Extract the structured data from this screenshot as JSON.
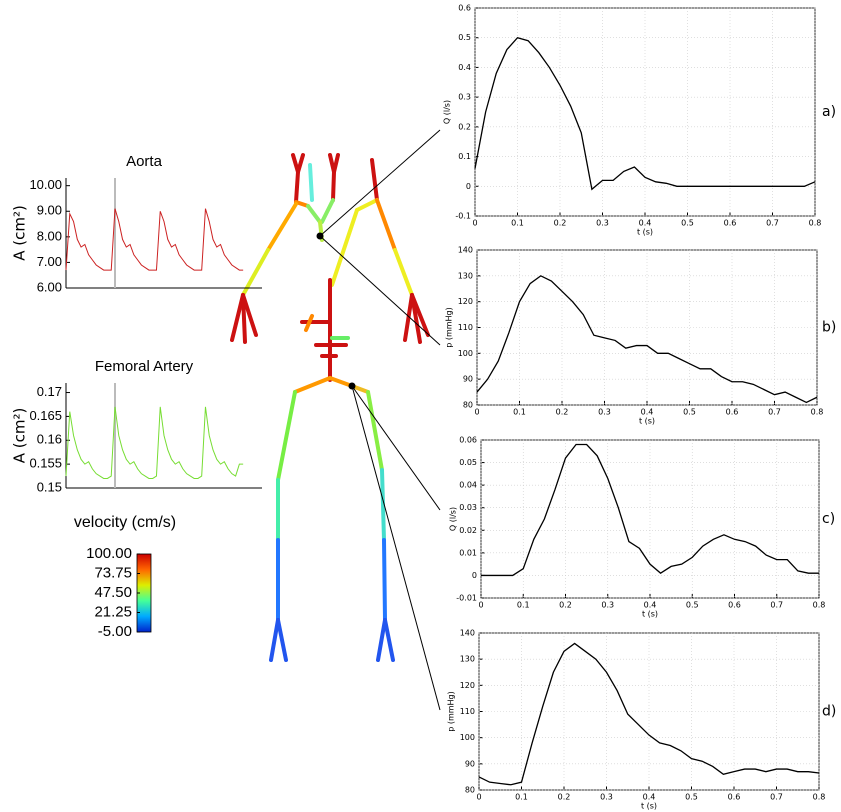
{
  "chart_data": [
    {
      "type": "line",
      "title": "Aorta",
      "y_label": "A (cm²)",
      "color": "#cc2222",
      "x": [
        0,
        1,
        2,
        3,
        4,
        5,
        6,
        7,
        8,
        9,
        10,
        11,
        12,
        13,
        14,
        15,
        16,
        17,
        18,
        19,
        20,
        21,
        22,
        23,
        24,
        25,
        26,
        27,
        28,
        29,
        30,
        31,
        32,
        33,
        34,
        35,
        36,
        37,
        38,
        39,
        40,
        41,
        42,
        43,
        44,
        45,
        46,
        47
      ],
      "values": [
        6.7,
        8.9,
        8.6,
        7.9,
        7.6,
        7.7,
        7.3,
        7.1,
        6.9,
        6.8,
        6.7,
        6.7,
        6.7,
        9.1,
        8.6,
        7.9,
        7.6,
        7.7,
        7.3,
        7.1,
        6.9,
        6.8,
        6.7,
        6.7,
        6.7,
        9.0,
        8.6,
        7.9,
        7.6,
        7.7,
        7.3,
        7.1,
        6.9,
        6.8,
        6.7,
        6.7,
        6.7,
        9.1,
        8.6,
        7.9,
        7.6,
        7.7,
        7.3,
        7.1,
        6.9,
        6.8,
        6.7,
        6.7
      ],
      "xlim": [
        0,
        52
      ],
      "ylim": [
        6,
        10.3
      ],
      "cursor_x": 13,
      "yticks": [
        {
          "value": 6,
          "label": "6.00"
        },
        {
          "value": 7,
          "label": "7.00"
        },
        {
          "value": 8,
          "label": "8.00"
        },
        {
          "value": 9,
          "label": "9.00"
        },
        {
          "value": 10,
          "label": "10.00"
        }
      ],
      "grid": false
    },
    {
      "type": "line",
      "title": "Femoral Artery",
      "y_label": "A (cm²)",
      "color": "#77dd33",
      "x": [
        0,
        1,
        2,
        3,
        4,
        5,
        6,
        7,
        8,
        9,
        10,
        11,
        12,
        13,
        14,
        15,
        16,
        17,
        18,
        19,
        20,
        21,
        22,
        23,
        24,
        25,
        26,
        27,
        28,
        29,
        30,
        31,
        32,
        33,
        34,
        35,
        36,
        37,
        38,
        39,
        40,
        41,
        42,
        43,
        44,
        45,
        46,
        47
      ],
      "values": [
        0.1525,
        0.166,
        0.161,
        0.158,
        0.156,
        0.155,
        0.1555,
        0.154,
        0.153,
        0.1525,
        0.152,
        0.152,
        0.1525,
        0.167,
        0.161,
        0.158,
        0.156,
        0.155,
        0.1555,
        0.154,
        0.153,
        0.1525,
        0.152,
        0.152,
        0.1525,
        0.167,
        0.161,
        0.158,
        0.156,
        0.155,
        0.1555,
        0.154,
        0.153,
        0.1525,
        0.152,
        0.152,
        0.1525,
        0.167,
        0.161,
        0.158,
        0.156,
        0.155,
        0.1555,
        0.154,
        0.153,
        0.1525,
        0.155,
        0.155
      ],
      "xlim": [
        0,
        52
      ],
      "ylim": [
        0.15,
        0.172
      ],
      "cursor_x": 13,
      "yticks": [
        0.15,
        0.155,
        0.16,
        0.165,
        0.17
      ],
      "grid": false
    },
    {
      "type": "line",
      "panel_label": "a)",
      "x_label": "t (s)",
      "y_label": "Q (l/s)",
      "color": "#000000",
      "x": [
        0,
        0.025,
        0.05,
        0.075,
        0.1,
        0.125,
        0.15,
        0.175,
        0.2,
        0.225,
        0.25,
        0.275,
        0.3,
        0.325,
        0.35,
        0.375,
        0.4,
        0.425,
        0.45,
        0.475,
        0.5,
        0.525,
        0.55,
        0.575,
        0.6,
        0.625,
        0.65,
        0.675,
        0.7,
        0.725,
        0.75,
        0.775,
        0.8
      ],
      "values": [
        0.06,
        0.25,
        0.38,
        0.46,
        0.5,
        0.49,
        0.45,
        0.4,
        0.34,
        0.27,
        0.18,
        -0.01,
        0.02,
        0.02,
        0.05,
        0.065,
        0.03,
        0.015,
        0.01,
        0,
        0,
        0,
        0,
        0,
        0,
        0,
        0,
        0,
        0,
        0,
        0,
        0,
        0.015
      ],
      "xlim": [
        0,
        0.8
      ],
      "ylim": [
        -0.1,
        0.6
      ],
      "xticks": [
        0,
        0.1,
        0.2,
        0.3,
        0.4,
        0.5,
        0.6,
        0.7,
        0.8
      ],
      "yticks": [
        -0.1,
        0,
        0.1,
        0.2,
        0.3,
        0.4,
        0.5,
        0.6
      ],
      "grid": true
    },
    {
      "type": "line",
      "panel_label": "b)",
      "x_label": "t (s)",
      "y_label": "p (mmHg)",
      "color": "#000000",
      "x": [
        0,
        0.025,
        0.05,
        0.075,
        0.1,
        0.125,
        0.15,
        0.175,
        0.2,
        0.225,
        0.25,
        0.275,
        0.3,
        0.325,
        0.35,
        0.375,
        0.4,
        0.425,
        0.45,
        0.475,
        0.5,
        0.525,
        0.55,
        0.575,
        0.6,
        0.625,
        0.65,
        0.675,
        0.7,
        0.725,
        0.75,
        0.775,
        0.8
      ],
      "values": [
        85,
        90,
        97,
        108,
        120,
        127,
        130,
        128,
        124,
        120,
        115,
        107,
        106,
        105,
        102,
        103,
        103,
        100,
        100,
        98,
        96,
        94,
        94,
        91,
        89,
        89,
        88,
        86,
        84,
        85,
        83,
        81,
        83
      ],
      "xlim": [
        0,
        0.8
      ],
      "ylim": [
        80,
        140
      ],
      "xticks": [
        0,
        0.1,
        0.2,
        0.3,
        0.4,
        0.5,
        0.6,
        0.7,
        0.8
      ],
      "yticks": [
        80,
        90,
        100,
        110,
        120,
        130,
        140
      ],
      "grid": true
    },
    {
      "type": "line",
      "panel_label": "c)",
      "x_label": "t (s)",
      "y_label": "Q (l/s)",
      "color": "#000000",
      "x": [
        0,
        0.025,
        0.05,
        0.075,
        0.1,
        0.125,
        0.15,
        0.175,
        0.2,
        0.225,
        0.25,
        0.275,
        0.3,
        0.325,
        0.35,
        0.375,
        0.4,
        0.425,
        0.45,
        0.475,
        0.5,
        0.525,
        0.55,
        0.575,
        0.6,
        0.625,
        0.65,
        0.675,
        0.7,
        0.725,
        0.75,
        0.775,
        0.8
      ],
      "values": [
        0,
        0,
        0,
        0,
        0.003,
        0.016,
        0.025,
        0.038,
        0.052,
        0.058,
        0.058,
        0.053,
        0.043,
        0.03,
        0.015,
        0.012,
        0.005,
        0.001,
        0.004,
        0.005,
        0.008,
        0.013,
        0.016,
        0.018,
        0.016,
        0.015,
        0.013,
        0.009,
        0.007,
        0.007,
        0.002,
        0.001,
        0.001
      ],
      "xlim": [
        0,
        0.8
      ],
      "ylim": [
        -0.01,
        0.06
      ],
      "xticks": [
        0,
        0.1,
        0.2,
        0.3,
        0.4,
        0.5,
        0.6,
        0.7,
        0.8
      ],
      "yticks": [
        -0.01,
        0,
        0.01,
        0.02,
        0.03,
        0.04,
        0.05,
        0.06
      ],
      "grid": true
    },
    {
      "type": "line",
      "panel_label": "d)",
      "x_label": "t (s)",
      "y_label": "p (mmHg)",
      "color": "#000000",
      "x": [
        0,
        0.025,
        0.05,
        0.075,
        0.1,
        0.125,
        0.15,
        0.175,
        0.2,
        0.225,
        0.25,
        0.275,
        0.3,
        0.325,
        0.35,
        0.375,
        0.4,
        0.425,
        0.45,
        0.475,
        0.5,
        0.525,
        0.55,
        0.575,
        0.6,
        0.625,
        0.65,
        0.675,
        0.7,
        0.725,
        0.75,
        0.775,
        0.8
      ],
      "values": [
        85,
        83,
        82.5,
        82,
        83,
        98,
        112,
        125,
        133,
        136,
        133,
        130,
        125,
        118,
        109,
        105,
        101,
        98,
        97,
        95,
        92,
        91,
        89,
        86,
        87,
        88,
        88,
        87,
        88,
        88,
        87,
        87,
        86.5
      ],
      "xlim": [
        0,
        0.8
      ],
      "ylim": [
        80,
        140
      ],
      "xticks": [
        0,
        0.1,
        0.2,
        0.3,
        0.4,
        0.5,
        0.6,
        0.7,
        0.8
      ],
      "yticks": [
        80,
        90,
        100,
        110,
        120,
        130,
        140
      ],
      "grid": true
    },
    {
      "type": "colorbar",
      "title": "velocity (cm/s)",
      "ylim": [
        -5,
        100
      ],
      "colors": [
        "#0022cc",
        "#00aaff",
        "#44ff99",
        "#ddee00",
        "#ff6600",
        "#cc0000"
      ],
      "yticks": [
        {
          "value": 100,
          "label": "100.00"
        },
        {
          "value": 73.75,
          "label": "73.75"
        },
        {
          "value": 47.5,
          "label": "47.50"
        },
        {
          "value": 21.25,
          "label": "21.25"
        },
        {
          "value": -5,
          "label": "-5.00"
        }
      ]
    }
  ]
}
